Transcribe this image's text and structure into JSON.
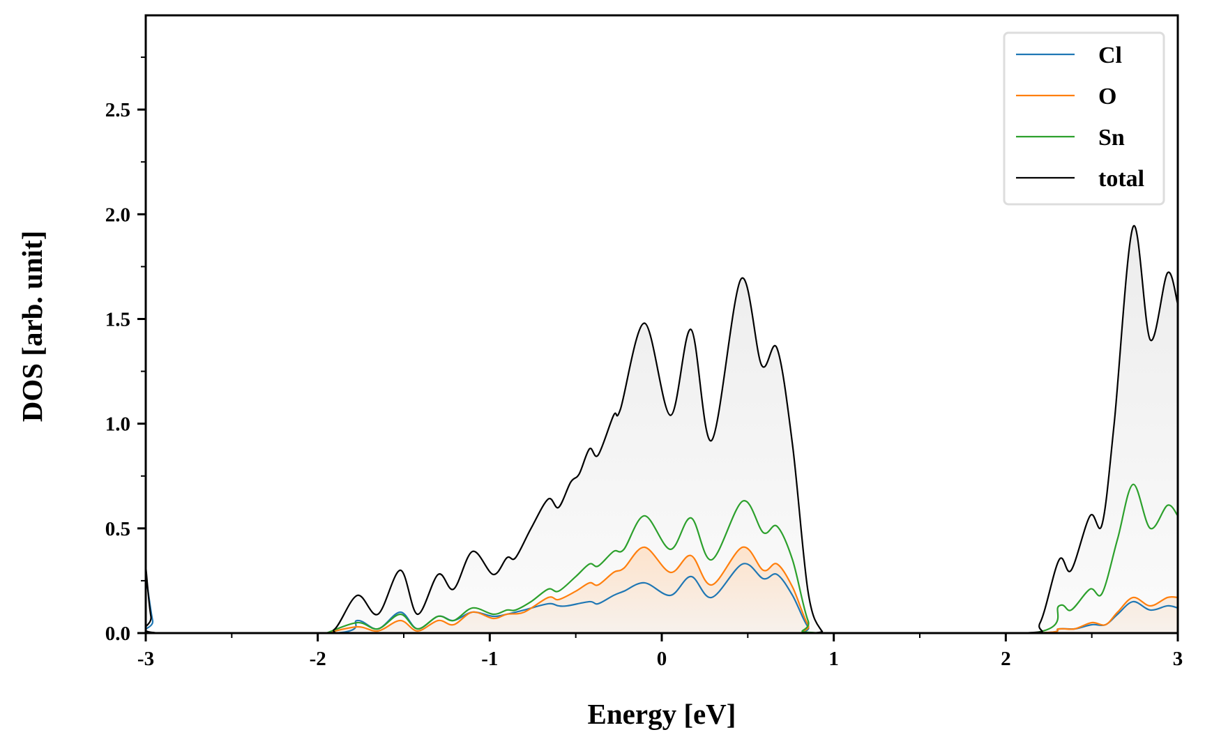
{
  "chart_data": {
    "type": "line",
    "title": "",
    "xlabel": "Energy [eV]",
    "ylabel": "DOS [arb. unit]",
    "xlim": [
      -3,
      3
    ],
    "ylim": [
      0,
      2.95
    ],
    "xticks": [
      -3,
      -2,
      -1,
      0,
      1,
      2,
      3
    ],
    "xtick_labels": [
      "-3",
      "-2",
      "-1",
      "0",
      "1",
      "2",
      "3"
    ],
    "xminor_step": 0.5,
    "yticks": [
      0.0,
      0.5,
      1.0,
      1.5,
      2.0,
      2.5
    ],
    "ytick_labels": [
      "0.0",
      "0.5",
      "1.0",
      "1.5",
      "2.0",
      "2.5"
    ],
    "yminor_step": 0.25,
    "grid": false,
    "legend_position": "top-right",
    "series": [
      {
        "name": "Cl",
        "color": "#1f77b4",
        "x": [
          -3.0,
          -2.96,
          -2.93,
          -1.9,
          -1.77,
          -1.65,
          -1.52,
          -1.42,
          -1.3,
          -1.21,
          -1.1,
          -0.98,
          -0.9,
          -0.8,
          -0.66,
          -0.6,
          -0.55,
          -0.42,
          -0.37,
          -0.28,
          -0.22,
          -0.1,
          0.05,
          0.17,
          0.29,
          0.47,
          0.59,
          0.67,
          0.76,
          0.85,
          0.93,
          2.15,
          2.31,
          2.4,
          2.5,
          2.58,
          2.65,
          2.74,
          2.84,
          2.94,
          3.0
        ],
        "y": [
          0.28,
          0.06,
          0.0,
          0.0,
          0.06,
          0.02,
          0.1,
          0.02,
          0.08,
          0.06,
          0.1,
          0.08,
          0.09,
          0.11,
          0.14,
          0.13,
          0.13,
          0.15,
          0.14,
          0.18,
          0.2,
          0.24,
          0.18,
          0.27,
          0.17,
          0.33,
          0.26,
          0.28,
          0.18,
          0.03,
          0.0,
          0.0,
          0.02,
          0.02,
          0.04,
          0.04,
          0.09,
          0.15,
          0.11,
          0.13,
          0.12
        ]
      },
      {
        "name": "O",
        "color": "#ff7f0e",
        "x": [
          -1.95,
          -1.77,
          -1.65,
          -1.52,
          -1.42,
          -1.3,
          -1.21,
          -1.1,
          -0.98,
          -0.9,
          -0.8,
          -0.66,
          -0.6,
          -0.5,
          -0.42,
          -0.37,
          -0.28,
          -0.22,
          -0.1,
          0.05,
          0.17,
          0.29,
          0.47,
          0.59,
          0.67,
          0.76,
          0.85,
          0.93,
          2.15,
          2.31,
          2.4,
          2.5,
          2.58,
          2.65,
          2.74,
          2.84,
          2.94,
          3.0
        ],
        "y": [
          0.0,
          0.03,
          0.01,
          0.06,
          0.01,
          0.06,
          0.04,
          0.1,
          0.07,
          0.09,
          0.1,
          0.17,
          0.16,
          0.2,
          0.24,
          0.23,
          0.29,
          0.31,
          0.41,
          0.29,
          0.37,
          0.23,
          0.41,
          0.3,
          0.33,
          0.22,
          0.04,
          0.0,
          0.0,
          0.02,
          0.02,
          0.05,
          0.04,
          0.1,
          0.17,
          0.13,
          0.17,
          0.17
        ]
      },
      {
        "name": "Sn",
        "color": "#2ca02c",
        "x": [
          -1.95,
          -1.77,
          -1.65,
          -1.52,
          -1.42,
          -1.3,
          -1.21,
          -1.1,
          -0.98,
          -0.9,
          -0.85,
          -0.76,
          -0.66,
          -0.6,
          -0.5,
          -0.42,
          -0.37,
          -0.28,
          -0.22,
          -0.1,
          0.05,
          0.17,
          0.29,
          0.47,
          0.59,
          0.67,
          0.76,
          0.85,
          0.93,
          2.15,
          2.31,
          2.38,
          2.49,
          2.56,
          2.65,
          2.74,
          2.84,
          2.94,
          3.0
        ],
        "y": [
          0.0,
          0.05,
          0.02,
          0.09,
          0.02,
          0.08,
          0.06,
          0.12,
          0.09,
          0.11,
          0.11,
          0.15,
          0.21,
          0.2,
          0.27,
          0.33,
          0.32,
          0.39,
          0.4,
          0.56,
          0.4,
          0.55,
          0.35,
          0.63,
          0.48,
          0.51,
          0.35,
          0.06,
          0.0,
          0.0,
          0.13,
          0.11,
          0.21,
          0.19,
          0.45,
          0.71,
          0.5,
          0.61,
          0.56
        ]
      },
      {
        "name": "total",
        "color": "#000000",
        "x": [
          -3.0,
          -2.97,
          -2.93,
          -2.0,
          -1.9,
          -1.77,
          -1.65,
          -1.52,
          -1.42,
          -1.3,
          -1.21,
          -1.1,
          -0.98,
          -0.9,
          -0.85,
          -0.76,
          -0.66,
          -0.6,
          -0.53,
          -0.48,
          -0.42,
          -0.37,
          -0.28,
          -0.24,
          -0.1,
          0.05,
          0.17,
          0.29,
          0.46,
          0.58,
          0.67,
          0.76,
          0.85,
          0.93,
          1.0,
          2.1,
          2.2,
          2.31,
          2.38,
          2.49,
          2.56,
          2.63,
          2.74,
          2.84,
          2.94,
          3.0
        ],
        "y": [
          0.32,
          0.08,
          0.0,
          0.0,
          0.02,
          0.18,
          0.09,
          0.3,
          0.09,
          0.28,
          0.21,
          0.39,
          0.28,
          0.36,
          0.36,
          0.5,
          0.64,
          0.6,
          0.72,
          0.76,
          0.88,
          0.85,
          1.04,
          1.07,
          1.48,
          1.04,
          1.45,
          0.92,
          1.69,
          1.28,
          1.36,
          0.9,
          0.2,
          0.01,
          0.0,
          0.0,
          0.05,
          0.35,
          0.3,
          0.56,
          0.52,
          1.0,
          1.94,
          1.4,
          1.72,
          1.57
        ]
      }
    ]
  }
}
